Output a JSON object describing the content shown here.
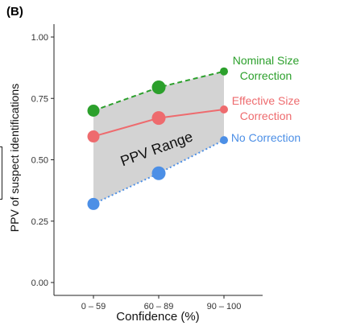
{
  "panel_label": "(B)",
  "chart_data": {
    "type": "line",
    "title": "",
    "xlabel": "Confidence (%)",
    "ylabel": "PPV of suspect identifications",
    "categories": [
      "0 – 59",
      "60 – 89",
      "90 – 100"
    ],
    "ylim": [
      0,
      1.05
    ],
    "yticks": [
      "0.00",
      "0.25",
      "0.50",
      "0.75",
      "1.00"
    ],
    "ytick_values": [
      0,
      0.25,
      0.5,
      0.75,
      1.0
    ],
    "series": [
      {
        "name": "Nominal Size Correction",
        "label_lines": [
          "Nominal Size",
          "Correction"
        ],
        "color": "#2ca02c",
        "values": [
          0.7,
          0.795,
          0.86
        ],
        "line_style": "dashed"
      },
      {
        "name": "Effective Size Correction",
        "label_lines": [
          "Effective Size",
          "Correction"
        ],
        "color": "#ee6b6e",
        "values": [
          0.595,
          0.67,
          0.705
        ],
        "line_style": "solid"
      },
      {
        "name": "No Correction",
        "label_lines": [
          "No Correction"
        ],
        "color": "#4c8fe6",
        "values": [
          0.32,
          0.445,
          0.58
        ],
        "line_style": "dotted"
      }
    ],
    "marker_sizes": [
      "medium",
      "large",
      "small"
    ],
    "shaded_region": {
      "label": "PPV Range",
      "color": "#d3d3d3",
      "between": [
        "Nominal Size Correction",
        "No Correction"
      ]
    },
    "grid": false,
    "legend": "direct labels at right end"
  }
}
